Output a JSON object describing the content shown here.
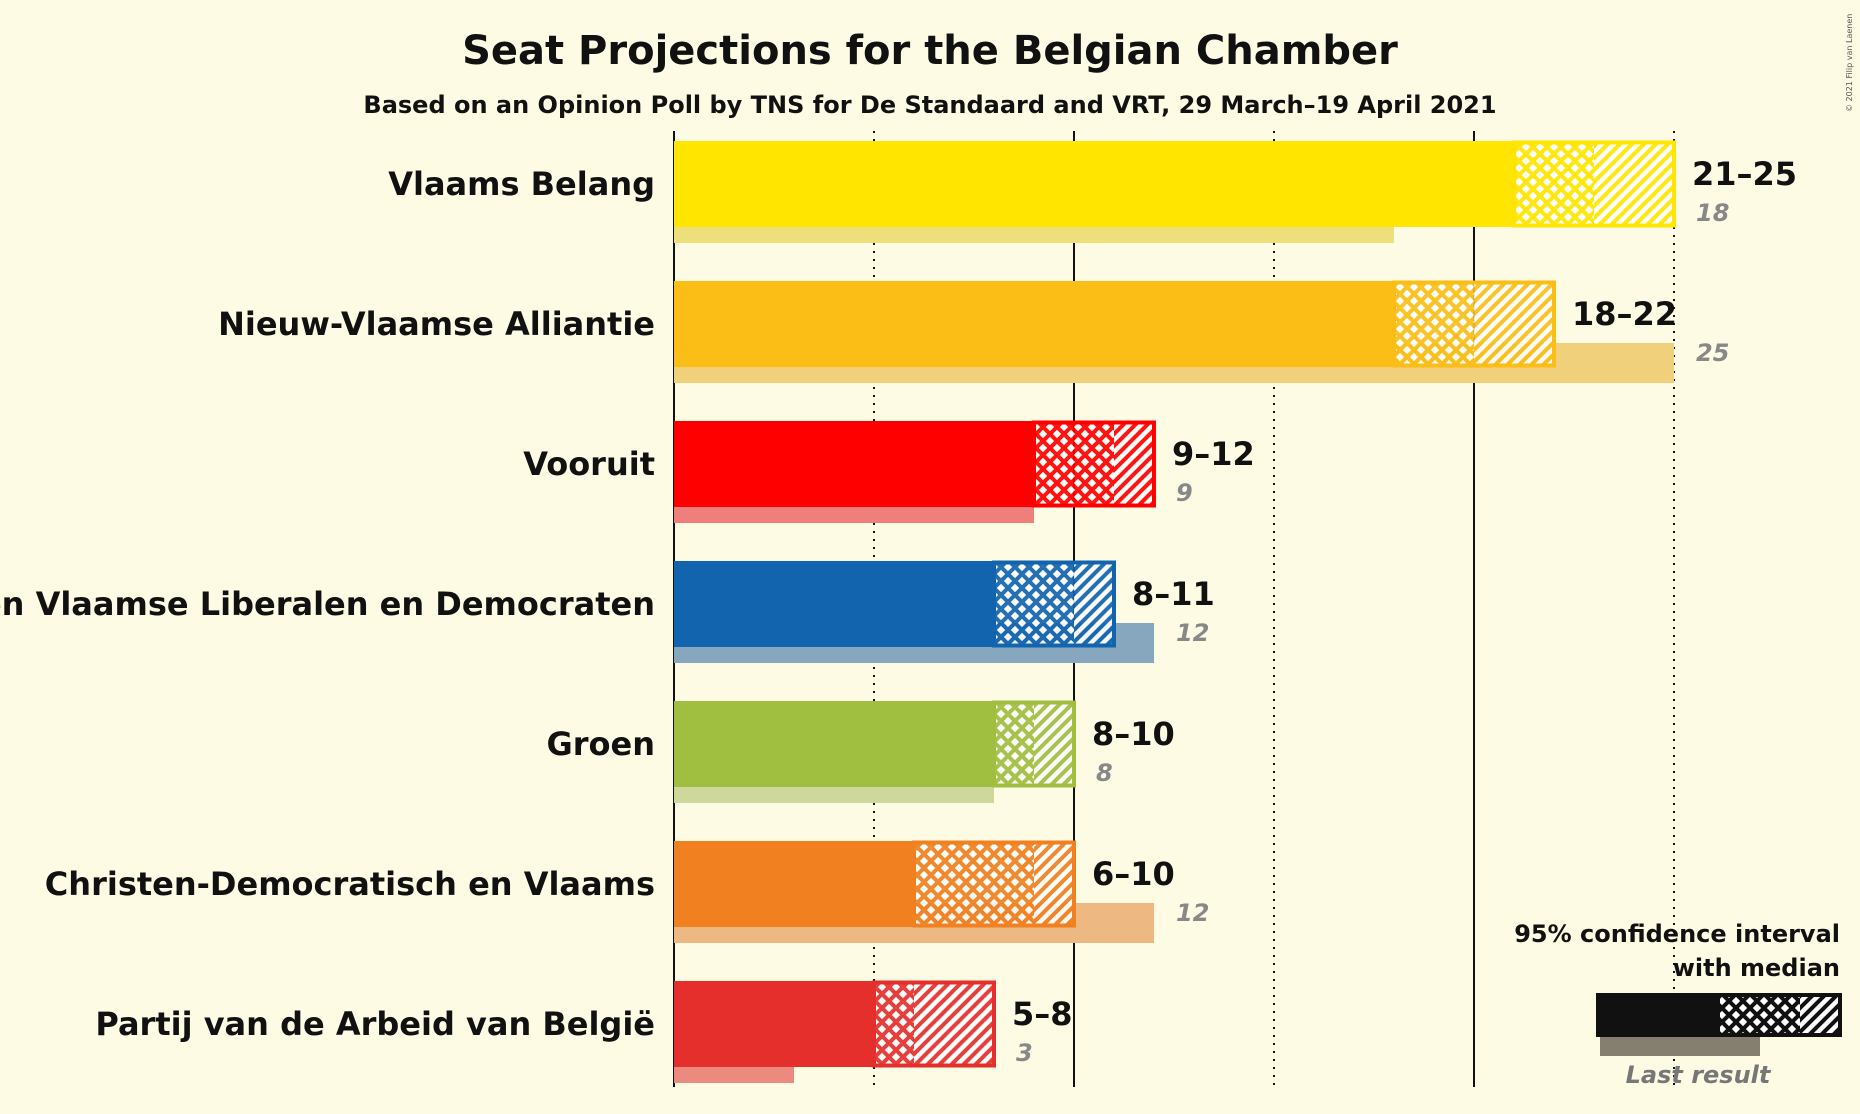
{
  "title": "Seat Projections for the Belgian Chamber",
  "subtitle": "Based on an Opinion Poll by TNS for De Standaard and VRT, 29 March–19 April 2021",
  "copyright": "© 2021 Filip van Laenen",
  "legend": {
    "line1": "95% confidence interval",
    "line2": "with median",
    "last_result": "Last result"
  },
  "chart_data": {
    "type": "bar",
    "orientation": "horizontal",
    "title": "Seat Projections for the Belgian Chamber",
    "subtitle": "Based on an Opinion Poll by TNS for De Standaard and VRT, 29 March–19 April 2021",
    "xlim": [
      0,
      25
    ],
    "gridlines": [
      5,
      10,
      15,
      20,
      25
    ],
    "parties": [
      {
        "name": "Vlaams Belang",
        "low": 21,
        "median": 23,
        "high": 25,
        "range_label": "21–25",
        "last": 18,
        "last_label": "18",
        "color": "#FFE500",
        "last_color": "#EDE07A"
      },
      {
        "name": "Nieuw-Vlaamse Alliantie",
        "low": 18,
        "median": 20,
        "high": 22,
        "range_label": "18–22",
        "last": 25,
        "last_label": "25",
        "color": "#FABE17",
        "last_color": "#F0D07A"
      },
      {
        "name": "Vooruit",
        "low": 9,
        "median": 11,
        "high": 12,
        "range_label": "9–12",
        "last": 9,
        "last_label": "9",
        "color": "#FF0000",
        "last_color": "#EE7F7A"
      },
      {
        "name": "Open Vlaamse Liberalen en Democraten",
        "low": 8,
        "median": 10,
        "high": 11,
        "range_label": "8–11",
        "last": 12,
        "last_label": "12",
        "color": "#1264AF",
        "last_color": "#86A7BE"
      },
      {
        "name": "Groen",
        "low": 8,
        "median": 9,
        "high": 10,
        "range_label": "8–10",
        "last": 8,
        "last_label": "8",
        "color": "#A0BE40",
        "last_color": "#CFD89B"
      },
      {
        "name": "Christen-Democratisch en Vlaams",
        "low": 6,
        "median": 9,
        "high": 10,
        "range_label": "6–10",
        "last": 12,
        "last_label": "12",
        "color": "#F08020",
        "last_color": "#EDB882"
      },
      {
        "name": "Partij van de Arbeid van België",
        "low": 5,
        "median": 6,
        "high": 8,
        "range_label": "5–8",
        "last": 3,
        "last_label": "3",
        "color": "#E52F2C",
        "last_color": "#EC8A80"
      }
    ]
  }
}
